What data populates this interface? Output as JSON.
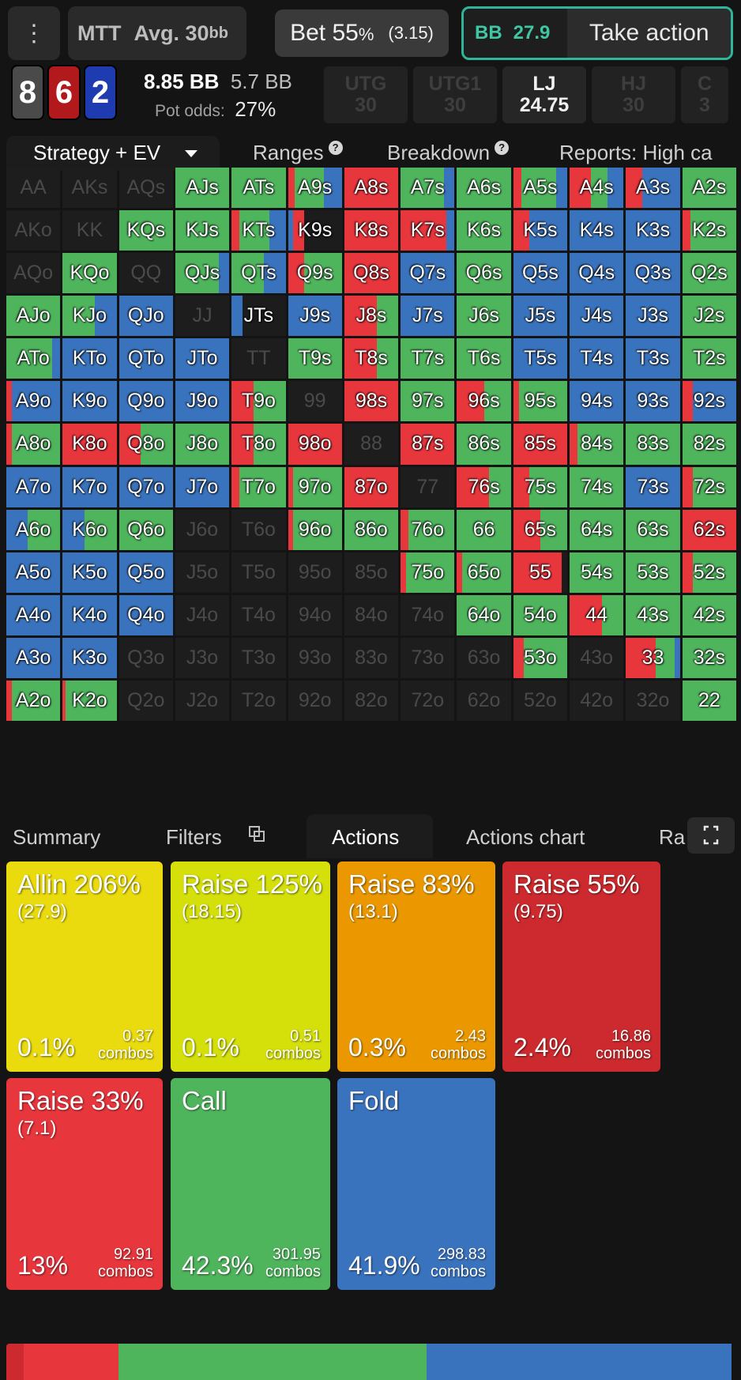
{
  "topbar": {
    "menu_icon": "more-vert-icon",
    "game_type": "MTT",
    "avg_label": "Avg. 30",
    "avg_unit": "bb",
    "bet_label": "Bet 55",
    "bet_pct": "%",
    "bet_amount": "(3.15)",
    "hero_pos": "BB",
    "hero_stack": "27.9",
    "take_action": "Take action"
  },
  "board": {
    "cards": [
      "8",
      "6",
      "2"
    ],
    "card_colors": [
      "#4a4a4a",
      "#b2191c",
      "#1f3bb0"
    ]
  },
  "pot": {
    "pot_bb": "8.85 BB",
    "to_call": "5.7 BB",
    "odds_label": "Pot odds:",
    "odds_value": "27%"
  },
  "positions": [
    {
      "name": "UTG",
      "stack": "30",
      "active": false
    },
    {
      "name": "UTG1",
      "stack": "30",
      "active": false
    },
    {
      "name": "LJ",
      "stack": "24.75",
      "active": true
    },
    {
      "name": "HJ",
      "stack": "30",
      "active": false
    },
    {
      "name": "C",
      "stack": "3",
      "active": false
    }
  ],
  "tabs": {
    "strategy": "Strategy + EV",
    "ranges": "Ranges",
    "breakdown": "Breakdown",
    "reports": "Reports: High ca"
  },
  "colors": {
    "red": "#e8363d",
    "green": "#4fb55d",
    "blue": "#3a73bd",
    "allin": "#eadb0e",
    "raise125": "#d5e00b",
    "raise83": "#eb9800",
    "raise55": "#cc2a2e",
    "raise33": "#e8363d"
  },
  "grid": [
    [
      [
        "AA",
        ""
      ],
      [
        "AKs",
        ""
      ],
      [
        "AQs",
        ""
      ],
      [
        "AJs",
        "g1"
      ],
      [
        "ATs",
        "g1"
      ],
      [
        "A9s",
        "r.12,g.55,b.33"
      ],
      [
        "A8s",
        "r1"
      ],
      [
        "A7s",
        "g.8,b.2"
      ],
      [
        "A6s",
        "g1"
      ],
      [
        "A5s",
        "r.15,g.65,b.2"
      ],
      [
        "A4s",
        "r.4,g.3,b.3"
      ],
      [
        "A3s",
        "r.3,b.7"
      ],
      [
        "A2s",
        "g1"
      ]
    ],
    [
      [
        "AKo",
        ""
      ],
      [
        "KK",
        ""
      ],
      [
        "KQs",
        "g1"
      ],
      [
        "KJs",
        "g1"
      ],
      [
        "KTs",
        "r.15,g.55,b.3"
      ],
      [
        "K9s",
        "b.1,r.2"
      ],
      [
        "K8s",
        "r1"
      ],
      [
        "K7s",
        "r.85,b.15"
      ],
      [
        "K6s",
        "g1"
      ],
      [
        "K5s",
        "r.3,b.7"
      ],
      [
        "K4s",
        "b1"
      ],
      [
        "K3s",
        "b1"
      ],
      [
        "K2s",
        "r.15,g.85"
      ]
    ],
    [
      [
        "AQo",
        ""
      ],
      [
        "KQo",
        "g1"
      ],
      [
        "QQ",
        ""
      ],
      [
        "QJs",
        "g.8,b.2"
      ],
      [
        "QTs",
        "g.6,b.4"
      ],
      [
        "Q9s",
        "r.3,g.7"
      ],
      [
        "Q8s",
        "r1"
      ],
      [
        "Q7s",
        "b1"
      ],
      [
        "Q6s",
        "g1"
      ],
      [
        "Q5s",
        "b1"
      ],
      [
        "Q4s",
        "b1"
      ],
      [
        "Q3s",
        "b1"
      ],
      [
        "Q2s",
        "g1"
      ]
    ],
    [
      [
        "AJo",
        "g1"
      ],
      [
        "KJo",
        "g.6,b.4"
      ],
      [
        "QJo",
        "b1"
      ],
      [
        "JJ",
        ""
      ],
      [
        "JTs",
        "b.2"
      ],
      [
        "J9s",
        "b1"
      ],
      [
        "J8s",
        "r.6,g.4"
      ],
      [
        "J7s",
        "b1"
      ],
      [
        "J6s",
        "g1"
      ],
      [
        "J5s",
        "b1"
      ],
      [
        "J4s",
        "b1"
      ],
      [
        "J3s",
        "b1"
      ],
      [
        "J2s",
        "g1"
      ]
    ],
    [
      [
        "ATo",
        "g.85,b.15"
      ],
      [
        "KTo",
        "b1"
      ],
      [
        "QTo",
        "b1"
      ],
      [
        "JTo",
        "b1"
      ],
      [
        "TT",
        ""
      ],
      [
        "T9s",
        "g1"
      ],
      [
        "T8s",
        "r.6,g.4"
      ],
      [
        "T7s",
        "g1"
      ],
      [
        "T6s",
        "g1"
      ],
      [
        "T5s",
        "b1"
      ],
      [
        "T4s",
        "b1"
      ],
      [
        "T3s",
        "b1"
      ],
      [
        "T2s",
        "g1"
      ]
    ],
    [
      [
        "A9o",
        "r.1,b.9"
      ],
      [
        "K9o",
        "b1"
      ],
      [
        "Q9o",
        "b1"
      ],
      [
        "J9o",
        "b1"
      ],
      [
        "T9o",
        "r.4,g.6"
      ],
      [
        "99",
        ""
      ],
      [
        "98s",
        "r1"
      ],
      [
        "97s",
        "g1"
      ],
      [
        "96s",
        "r.5,g.5"
      ],
      [
        "95s",
        "r.1,g.9"
      ],
      [
        "94s",
        "b1"
      ],
      [
        "93s",
        "b1"
      ],
      [
        "92s",
        "r.2,b.8"
      ]
    ],
    [
      [
        "A8o",
        "r.1,g.9"
      ],
      [
        "K8o",
        "r1"
      ],
      [
        "Q8o",
        "r.4,g.6"
      ],
      [
        "J8o",
        "g1"
      ],
      [
        "T8o",
        "r.4,g.6"
      ],
      [
        "98o",
        "r1"
      ],
      [
        "88",
        ""
      ],
      [
        "87s",
        "r1"
      ],
      [
        "86s",
        "g1"
      ],
      [
        "85s",
        "r1"
      ],
      [
        "84s",
        "r.15,g.85"
      ],
      [
        "83s",
        "g1"
      ],
      [
        "82s",
        "g1"
      ]
    ],
    [
      [
        "A7o",
        "b1"
      ],
      [
        "K7o",
        "b1"
      ],
      [
        "Q7o",
        "b1"
      ],
      [
        "J7o",
        "b1"
      ],
      [
        "T7o",
        "r.15,g.85"
      ],
      [
        "97o",
        "r.1,g.9"
      ],
      [
        "87o",
        "r1"
      ],
      [
        "77",
        ""
      ],
      [
        "76s",
        "r.6,g.4"
      ],
      [
        "75s",
        "r.3,g.7"
      ],
      [
        "74s",
        "g1"
      ],
      [
        "73s",
        "b1"
      ],
      [
        "72s",
        "r.2,g.8"
      ]
    ],
    [
      [
        "A6o",
        "b.4,g.6"
      ],
      [
        "K6o",
        "b.4,g.6"
      ],
      [
        "Q6o",
        "g1"
      ],
      [
        "J6o",
        ""
      ],
      [
        "T6o",
        ""
      ],
      [
        "96o",
        "r.1,g.9"
      ],
      [
        "86o",
        "g1"
      ],
      [
        "76o",
        "r.15,g.85"
      ],
      [
        "66",
        "g1"
      ],
      [
        "65s",
        "r.5,g.5"
      ],
      [
        "64s",
        "g1"
      ],
      [
        "63s",
        "g1"
      ],
      [
        "62s",
        "r1"
      ]
    ],
    [
      [
        "A5o",
        "b1"
      ],
      [
        "K5o",
        "b1"
      ],
      [
        "Q5o",
        "b1"
      ],
      [
        "J5o",
        ""
      ],
      [
        "T5o",
        ""
      ],
      [
        "95o",
        ""
      ],
      [
        "85o",
        ""
      ],
      [
        "75o",
        "r.1,g.9"
      ],
      [
        "65o",
        "r.1,g.9"
      ],
      [
        "55",
        "r.9"
      ],
      [
        "54s",
        "g1"
      ],
      [
        "53s",
        "g1"
      ],
      [
        "52s",
        "r.2,g.8"
      ]
    ],
    [
      [
        "A4o",
        "b1"
      ],
      [
        "K4o",
        "b1"
      ],
      [
        "Q4o",
        "b1"
      ],
      [
        "J4o",
        ""
      ],
      [
        "T4o",
        ""
      ],
      [
        "94o",
        ""
      ],
      [
        "84o",
        ""
      ],
      [
        "74o",
        ""
      ],
      [
        "64o",
        "g1"
      ],
      [
        "54o",
        "g1"
      ],
      [
        "44",
        "r.6,g.4"
      ],
      [
        "43s",
        "g1"
      ],
      [
        "42s",
        "g1"
      ]
    ],
    [
      [
        "A3o",
        "b1"
      ],
      [
        "K3o",
        "b1"
      ],
      [
        "Q3o",
        ""
      ],
      [
        "J3o",
        ""
      ],
      [
        "T3o",
        ""
      ],
      [
        "93o",
        ""
      ],
      [
        "83o",
        ""
      ],
      [
        "73o",
        ""
      ],
      [
        "63o",
        ""
      ],
      [
        "53o",
        "r.2,g.8"
      ],
      [
        "43o",
        ""
      ],
      [
        "33",
        "r.55,g.35,b.1"
      ],
      [
        "32s",
        "g1"
      ]
    ],
    [
      [
        "A2o",
        "r.1,g.9"
      ],
      [
        "K2o",
        "r.05,g.95"
      ],
      [
        "Q2o",
        ""
      ],
      [
        "J2o",
        ""
      ],
      [
        "T2o",
        ""
      ],
      [
        "92o",
        ""
      ],
      [
        "82o",
        ""
      ],
      [
        "72o",
        ""
      ],
      [
        "62o",
        ""
      ],
      [
        "52o",
        ""
      ],
      [
        "42o",
        ""
      ],
      [
        "32o",
        ""
      ],
      [
        "22",
        "g1"
      ]
    ]
  ],
  "bottom_tabs": {
    "summary": "Summary",
    "filters": "Filters",
    "actions": "Actions",
    "actions_chart": "Actions chart",
    "ra": "Ra"
  },
  "actions": [
    {
      "name": "Allin 206%",
      "size": "(27.9)",
      "pct": "0.1%",
      "combos": "0.37",
      "combos_label": "combos",
      "color": "#eadb0e"
    },
    {
      "name": "Raise 125%",
      "size": "(18.15)",
      "pct": "0.1%",
      "combos": "0.51",
      "combos_label": "combos",
      "color": "#d5e00b"
    },
    {
      "name": "Raise 83%",
      "size": "(13.1)",
      "pct": "0.3%",
      "combos": "2.43",
      "combos_label": "combos",
      "color": "#eb9800"
    },
    {
      "name": "Raise 55%",
      "size": "(9.75)",
      "pct": "2.4%",
      "combos": "16.86",
      "combos_label": "combos",
      "color": "#cc2a2e"
    },
    {
      "name": "Raise 33%",
      "size": "(7.1)",
      "pct": "13%",
      "combos": "92.91",
      "combos_label": "combos",
      "color": "#e8363d"
    },
    {
      "name": "Call",
      "size": "",
      "pct": "42.3%",
      "combos": "301.95",
      "combos_label": "combos",
      "color": "#4fb55d"
    },
    {
      "name": "Fold",
      "size": "",
      "pct": "41.9%",
      "combos": "298.83",
      "combos_label": "combos",
      "color": "#3a73bd"
    }
  ],
  "summary_bar": [
    {
      "name": "Raise 55%",
      "fraction": 0.024,
      "color": "#cc2a2e"
    },
    {
      "name": "Raise 33%",
      "fraction": 0.13,
      "color": "#e8363d"
    },
    {
      "name": "Call",
      "fraction": 0.423,
      "color": "#4fb55d"
    },
    {
      "name": "Fold",
      "fraction": 0.419,
      "color": "#3a73bd"
    }
  ]
}
